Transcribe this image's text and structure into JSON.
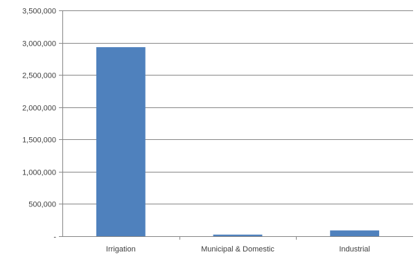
{
  "chart_data": {
    "type": "bar",
    "categories": [
      "Irrigation",
      "Municipal & Domestic",
      "Industrial"
    ],
    "values": [
      2930000,
      25000,
      90000
    ],
    "yticks": [
      "-",
      "500,000",
      "1,000,000",
      "1,500,000",
      "2,000,000",
      "2,500,000",
      "3,000,000",
      "3,500,000"
    ],
    "ylim": [
      0,
      3500000
    ],
    "grid": true,
    "legend": "none",
    "bar_color": "#4f81bd",
    "grid_color": "#868686"
  }
}
